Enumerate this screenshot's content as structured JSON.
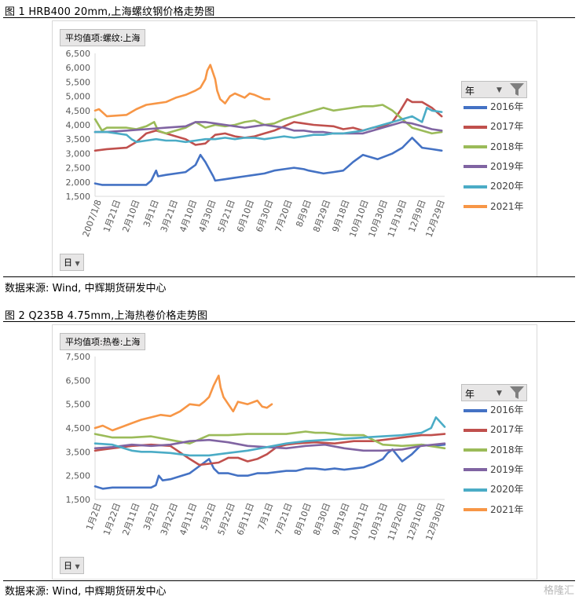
{
  "figures": [
    {
      "title": "图 1  HRB400 20mm,上海螺纹钢价格走势图",
      "field_button": "平均值项:螺纹:上海",
      "filter_button": "日",
      "legend_title": "年",
      "source": "数据来源: Wind, 中辉期货研发中心"
    },
    {
      "title": "图 2  Q235B 4.75mm,上海热卷价格走势图",
      "field_button": "平均值项:热卷:上海",
      "filter_button": "日",
      "legend_title": "年",
      "source": "数据来源: Wind, 中辉期货研发中心"
    }
  ],
  "watermark": "格隆汇",
  "chart_data": [
    {
      "type": "line",
      "title": "",
      "grid": false,
      "legend_position": "right",
      "ylim": [
        1500,
        6500
      ],
      "y_ticks": [
        "1,500",
        "2,000",
        "2,500",
        "3,000",
        "3,500",
        "4,000",
        "4,500",
        "5,000",
        "5,500",
        "6,000",
        "6,500"
      ],
      "x_range_days": [
        8,
        363
      ],
      "x_tick_labels": [
        "2007/1/8",
        "1月21日",
        "2月10日",
        "3月1日",
        "3月21日",
        "4月10日",
        "4月30日",
        "5月21日",
        "6月10日",
        "6月30日",
        "7月20日",
        "8月9日",
        "8月29日",
        "9月18日",
        "10月10日",
        "10月30日",
        "11月19日",
        "12月9日",
        "12月29日"
      ],
      "series": [
        {
          "name": "2016年",
          "color": "#4472c4",
          "x": [
            8,
            15,
            30,
            60,
            65,
            70,
            72,
            80,
            100,
            110,
            115,
            120,
            128,
            130,
            140,
            150,
            160,
            170,
            180,
            190,
            200,
            210,
            220,
            225,
            240,
            250,
            260,
            265,
            270,
            280,
            295,
            310,
            320,
            330,
            340,
            350,
            360
          ],
          "y": [
            1950,
            1900,
            1900,
            1900,
            2050,
            2400,
            2200,
            2250,
            2350,
            2600,
            2950,
            2700,
            2200,
            2050,
            2100,
            2150,
            2200,
            2250,
            2300,
            2400,
            2450,
            2500,
            2450,
            2400,
            2300,
            2350,
            2400,
            2550,
            2700,
            2950,
            2800,
            3000,
            3200,
            3550,
            3200,
            3150,
            3100
          ]
        },
        {
          "name": "2017年",
          "color": "#c0504d",
          "x": [
            8,
            20,
            40,
            50,
            60,
            70,
            80,
            90,
            100,
            110,
            120,
            130,
            140,
            150,
            160,
            170,
            180,
            190,
            200,
            210,
            230,
            250,
            260,
            270,
            280,
            290,
            300,
            310,
            318,
            325,
            330,
            340,
            350,
            360
          ],
          "y": [
            3100,
            3150,
            3200,
            3400,
            3700,
            3800,
            3700,
            3600,
            3500,
            3300,
            3350,
            3650,
            3700,
            3600,
            3550,
            3600,
            3700,
            3800,
            3950,
            4100,
            4000,
            3950,
            3850,
            3900,
            3800,
            3900,
            3950,
            4100,
            4500,
            4900,
            4800,
            4800,
            4600,
            4300
          ]
        },
        {
          "name": "2018年",
          "color": "#9bbb59",
          "x": [
            8,
            15,
            20,
            30,
            40,
            50,
            60,
            68,
            72,
            80,
            90,
            100,
            110,
            120,
            130,
            140,
            150,
            160,
            170,
            180,
            190,
            200,
            210,
            220,
            230,
            240,
            250,
            260,
            270,
            280,
            290,
            300,
            310,
            320,
            330,
            340,
            350,
            360
          ],
          "y": [
            4200,
            3800,
            3900,
            3900,
            3900,
            3850,
            3950,
            4100,
            3800,
            3700,
            3800,
            3900,
            4100,
            3900,
            4000,
            3950,
            4000,
            4100,
            4150,
            4000,
            4050,
            4200,
            4300,
            4400,
            4500,
            4600,
            4500,
            4550,
            4600,
            4650,
            4650,
            4700,
            4500,
            4200,
            3900,
            3800,
            3700,
            3750
          ]
        },
        {
          "name": "2019年",
          "color": "#8064a2",
          "x": [
            8,
            20,
            40,
            60,
            80,
            100,
            110,
            120,
            130,
            140,
            150,
            160,
            170,
            180,
            190,
            200,
            210,
            220,
            230,
            240,
            250,
            260,
            270,
            280,
            290,
            300,
            310,
            320,
            330,
            340,
            350,
            360
          ],
          "y": [
            3750,
            3750,
            3800,
            3850,
            3900,
            3950,
            4100,
            4100,
            4050,
            4000,
            3950,
            3900,
            3950,
            4000,
            3950,
            3900,
            3800,
            3800,
            3750,
            3750,
            3700,
            3700,
            3700,
            3700,
            3800,
            3900,
            4000,
            4100,
            4050,
            3950,
            3850,
            3800
          ]
        },
        {
          "name": "2020年",
          "color": "#4bacc6",
          "x": [
            8,
            20,
            30,
            40,
            45,
            50,
            60,
            70,
            80,
            90,
            100,
            110,
            120,
            130,
            140,
            150,
            160,
            170,
            180,
            190,
            200,
            210,
            220,
            230,
            240,
            250,
            260,
            270,
            280,
            290,
            300,
            310,
            320,
            330,
            340,
            345,
            350,
            360
          ],
          "y": [
            3750,
            3750,
            3700,
            3650,
            3500,
            3400,
            3450,
            3500,
            3450,
            3450,
            3400,
            3450,
            3500,
            3500,
            3550,
            3500,
            3550,
            3550,
            3500,
            3550,
            3600,
            3550,
            3600,
            3650,
            3650,
            3700,
            3700,
            3750,
            3800,
            3900,
            4000,
            4100,
            4200,
            4300,
            4100,
            4600,
            4500,
            4450
          ]
        },
        {
          "name": "2021年",
          "color": "#f79646",
          "x": [
            8,
            12,
            20,
            40,
            50,
            60,
            70,
            80,
            90,
            100,
            110,
            115,
            120,
            122,
            125,
            130,
            132,
            135,
            140,
            145,
            150,
            160,
            165,
            170,
            180,
            185
          ],
          "y": [
            4500,
            4550,
            4300,
            4350,
            4550,
            4700,
            4750,
            4800,
            4950,
            5050,
            5200,
            5300,
            5600,
            5900,
            6100,
            5600,
            5200,
            4900,
            4750,
            5000,
            5100,
            4950,
            5100,
            5050,
            4900,
            4900
          ]
        }
      ]
    },
    {
      "type": "line",
      "title": "",
      "grid": false,
      "legend_position": "right",
      "ylim": [
        1500,
        7500
      ],
      "y_ticks": [
        "1,500",
        "2,500",
        "3,500",
        "4,500",
        "5,500",
        "6,500",
        "7,500"
      ],
      "x_range_days": [
        2,
        364
      ],
      "x_tick_labels": [
        "1月2日",
        "1月22日",
        "2月11日",
        "3月2日",
        "3月22日",
        "4月11日",
        "5月2日",
        "5月22日",
        "6月11日",
        "7月1日",
        "7月21日",
        "8月10日",
        "8月30日",
        "9月19日",
        "10月11日",
        "10月31日",
        "11月20日",
        "12月10日",
        "12月30日"
      ],
      "series": [
        {
          "name": "2016年",
          "color": "#4472c4",
          "x": [
            2,
            10,
            20,
            40,
            60,
            65,
            68,
            72,
            80,
            100,
            110,
            115,
            120,
            125,
            130,
            140,
            150,
            160,
            170,
            180,
            190,
            200,
            210,
            220,
            230,
            240,
            250,
            260,
            270,
            280,
            290,
            300,
            305,
            310,
            320,
            330,
            340,
            350,
            364
          ],
          "y": [
            2050,
            1950,
            2000,
            2000,
            2000,
            2100,
            2500,
            2300,
            2350,
            2600,
            2900,
            3050,
            3200,
            2800,
            2600,
            2600,
            2500,
            2500,
            2600,
            2600,
            2650,
            2700,
            2700,
            2800,
            2800,
            2750,
            2800,
            2750,
            2800,
            2850,
            3000,
            3200,
            3450,
            3600,
            3100,
            3400,
            3800,
            3750,
            3800
          ]
        },
        {
          "name": "2017年",
          "color": "#c0504d",
          "x": [
            2,
            20,
            40,
            60,
            80,
            100,
            110,
            120,
            130,
            140,
            150,
            160,
            170,
            180,
            190,
            200,
            210,
            230,
            250,
            270,
            290,
            300,
            310,
            320,
            330,
            340,
            350,
            364
          ],
          "y": [
            3550,
            3650,
            3750,
            3800,
            3750,
            3200,
            2950,
            3000,
            3050,
            3250,
            3250,
            3100,
            3200,
            3400,
            3700,
            3800,
            3850,
            3900,
            3850,
            3950,
            3950,
            4000,
            4050,
            4100,
            4150,
            4200,
            4200,
            4250
          ]
        },
        {
          "name": "2018年",
          "color": "#9bbb59",
          "x": [
            2,
            20,
            40,
            60,
            80,
            100,
            120,
            140,
            160,
            180,
            200,
            220,
            230,
            240,
            260,
            280,
            300,
            320,
            340,
            364
          ],
          "y": [
            4250,
            4100,
            4100,
            4150,
            4000,
            3850,
            4200,
            4200,
            4250,
            4250,
            4250,
            4350,
            4300,
            4300,
            4200,
            4200,
            3800,
            3750,
            3800,
            3650
          ]
        },
        {
          "name": "2019年",
          "color": "#8064a2",
          "x": [
            2,
            20,
            40,
            60,
            80,
            100,
            120,
            140,
            160,
            180,
            200,
            220,
            240,
            260,
            280,
            300,
            320,
            340,
            364
          ],
          "y": [
            3650,
            3700,
            3800,
            3750,
            3800,
            3950,
            4000,
            3900,
            3750,
            3700,
            3650,
            3750,
            3800,
            3650,
            3550,
            3550,
            3600,
            3750,
            3850
          ]
        },
        {
          "name": "2020年",
          "color": "#4bacc6",
          "x": [
            2,
            20,
            40,
            50,
            60,
            80,
            100,
            120,
            140,
            160,
            180,
            200,
            220,
            240,
            260,
            280,
            300,
            320,
            340,
            350,
            355,
            364
          ],
          "y": [
            3850,
            3800,
            3550,
            3500,
            3500,
            3450,
            3350,
            3350,
            3450,
            3550,
            3700,
            3850,
            3950,
            4000,
            4050,
            4100,
            4150,
            4200,
            4300,
            4500,
            4950,
            4550
          ]
        },
        {
          "name": "2021年",
          "color": "#f79646",
          "x": [
            2,
            10,
            20,
            30,
            40,
            50,
            60,
            70,
            80,
            90,
            100,
            110,
            115,
            120,
            125,
            130,
            132,
            135,
            140,
            145,
            150,
            160,
            170,
            175,
            180,
            185
          ],
          "y": [
            4500,
            4600,
            4400,
            4550,
            4700,
            4850,
            4950,
            5050,
            5000,
            5200,
            5500,
            5450,
            5600,
            5800,
            6300,
            6700,
            6200,
            5800,
            5500,
            5200,
            5600,
            5500,
            5650,
            5400,
            5350,
            5500
          ]
        }
      ]
    }
  ]
}
